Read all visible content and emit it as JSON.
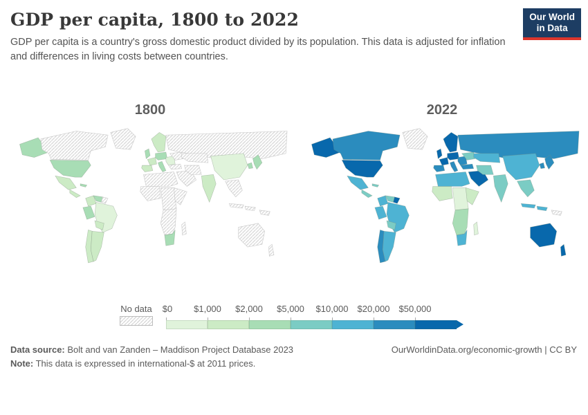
{
  "header": {
    "title": "GDP per capita, 1800 to 2022",
    "subtitle_lines": [
      "GDP per capita is a country's gross domestic product divided by its population. This data is adjusted for inflation",
      "and differences in living costs between countries."
    ],
    "logo": {
      "line1": "Our World",
      "line2": "in Data",
      "bg_color": "#1d3d63",
      "accent_color": "#dc352c"
    }
  },
  "chart_data": {
    "type": "heatmap",
    "subtype": "choropleth world map comparison",
    "title": "GDP per capita, 1800 to 2022",
    "unit": "international-$ at 2011 prices",
    "legend": {
      "no_data_label": "No data",
      "tick_labels": [
        "$0",
        "$1,000",
        "$2,000",
        "$5,000",
        "$10,000",
        "$20,000",
        "$50,000"
      ],
      "bin_ranges": [
        "$0-$1,000",
        "$1,000-$2,000",
        "$2,000-$5,000",
        "$5,000-$10,000",
        "$10,000-$20,000",
        "$20,000-$50,000",
        "$50,000+"
      ],
      "bin_colors": [
        "#e0f3db",
        "#ccebc5",
        "#a8ddb5",
        "#7bccc4",
        "#4eb3d3",
        "#2b8cbe",
        "#0868ac"
      ],
      "no_data_hatch_color": "#cfcfcf"
    },
    "maps": [
      {
        "year": "1800",
        "regions": {
          "alaska": 2,
          "canada": "nd",
          "greenland": "nd",
          "usa": 2,
          "mexico": 1,
          "central-america": 1,
          "cuba": 2,
          "colombia": 1,
          "venezuela": 2,
          "guyana": "nd",
          "peru": 2,
          "brazil": 0,
          "bolivia": 1,
          "chile": 1,
          "argentina": 1,
          "scandinavia": 1,
          "uk": 2,
          "france": 1,
          "iberia": 1,
          "central-europe": 2,
          "italy": 2,
          "eastern-europe": 0,
          "ukraine": "nd",
          "russia": "nd",
          "central-asia": "nd",
          "turkey": "nd",
          "middle-east": "nd",
          "iran": "nd",
          "india": 1,
          "china": 0,
          "se-asia": "nd",
          "indonesia": "nd",
          "indonesia-east": "nd",
          "japan": 2,
          "korea": 2,
          "north-africa": "nd",
          "west-africa": "nd",
          "central-africa": "nd",
          "east-africa": "nd",
          "southern-africa": "nd",
          "south-africa": 2,
          "madagascar": "nd",
          "australia": "nd",
          "new-zealand": "nd",
          "papua": "nd"
        }
      },
      {
        "year": "2022",
        "regions": {
          "alaska": 6,
          "canada": 5,
          "greenland": "nd",
          "usa": 6,
          "mexico": 4,
          "central-america": 3,
          "cuba": 3,
          "colombia": 4,
          "venezuela": 3,
          "guyana": 6,
          "peru": 4,
          "brazil": 4,
          "bolivia": 3,
          "chile": 5,
          "argentina": 4,
          "scandinavia": 6,
          "uk": 6,
          "france": 6,
          "iberia": 5,
          "central-europe": 6,
          "italy": 5,
          "eastern-europe": 5,
          "ukraine": 3,
          "russia": 5,
          "central-asia": 4,
          "turkey": 5,
          "middle-east": 6,
          "iran": 3,
          "india": 3,
          "china": 4,
          "se-asia": 3,
          "indonesia": 4,
          "indonesia-east": 4,
          "japan": 5,
          "korea": 5,
          "north-africa": 4,
          "west-africa": 1,
          "central-africa": 0,
          "east-africa": 1,
          "southern-africa": 2,
          "south-africa": 4,
          "madagascar": 0,
          "australia": 6,
          "new-zealand": 6,
          "papua": "nd"
        }
      }
    ],
    "regions_encoding": "value = index into bin_colors/bin_ranges; nd = no data (hatched)"
  },
  "footer": {
    "data_source_label": "Data source:",
    "data_source_text": " Bolt and van Zanden – Maddison Project Database 2023",
    "note_label": "Note:",
    "note_text": " This data is expressed in international-$ at 2011 prices.",
    "link_text": "OurWorldinData.org/economic-growth | CC BY"
  }
}
